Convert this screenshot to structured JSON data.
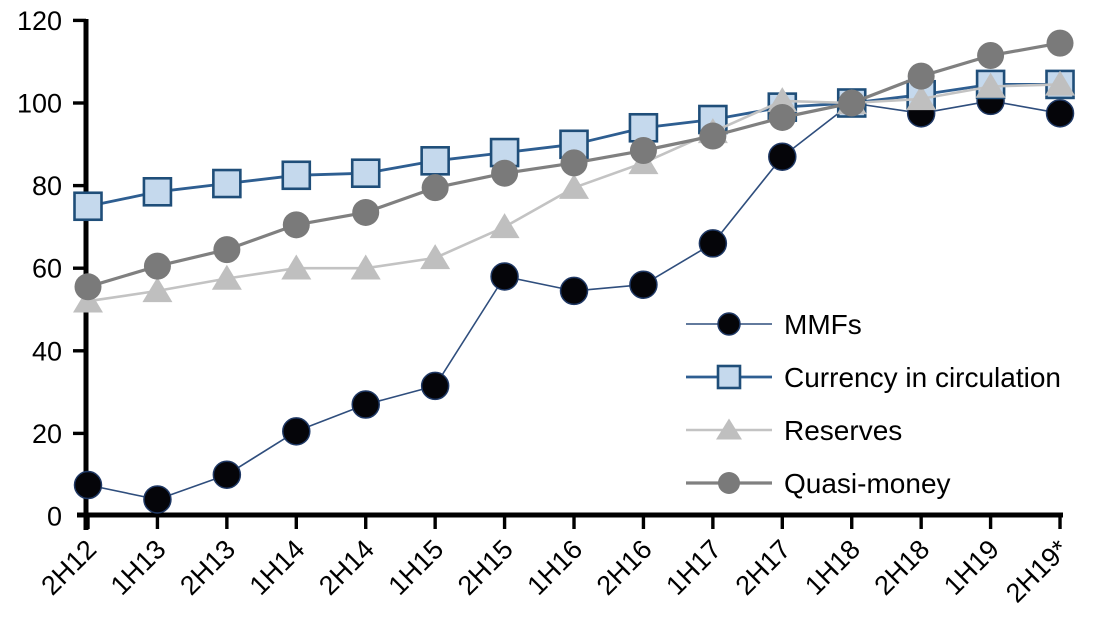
{
  "chart_data": {
    "type": "line",
    "title": "",
    "xlabel": "",
    "ylabel": "",
    "ylim": [
      0,
      120
    ],
    "grid": "off",
    "legend_position": "center-right-inside",
    "ytick_labels": [
      "0",
      "20",
      "40",
      "60",
      "80",
      "100",
      "120"
    ],
    "ytick_values": [
      0,
      20,
      40,
      60,
      80,
      100,
      120
    ],
    "categories": [
      "2H12",
      "1H13",
      "2H13",
      "1H14",
      "2H14",
      "1H15",
      "2H15",
      "1H16",
      "2H16",
      "1H17",
      "2H17",
      "1H18",
      "2H18",
      "1H19",
      "2H19*"
    ],
    "axis_color": "#000000",
    "series": [
      {
        "name": "MMFs",
        "marker": "circle",
        "line_color": "#2F4E7D",
        "line_width": 1.6,
        "marker_fill": "#050509",
        "marker_stroke": "#1F3864",
        "marker_stroke_width": 1.5,
        "values": [
          7.5,
          4,
          10,
          20.5,
          27,
          31.5,
          58,
          54.5,
          56,
          66,
          87,
          100,
          97.5,
          100.5,
          97.5
        ]
      },
      {
        "name": "Currency in circulation",
        "marker": "square",
        "line_color": "#2E5E91",
        "line_width": 2.8,
        "marker_fill": "#C5D9ED",
        "marker_stroke": "#1F4E79",
        "marker_stroke_width": 2.6,
        "values": [
          75,
          78.5,
          80.5,
          82.5,
          83,
          86,
          88,
          90,
          94,
          96,
          99,
          100,
          102,
          104.5,
          104.5
        ]
      },
      {
        "name": "Reserves",
        "marker": "triangle",
        "line_color": "#C3C3C3",
        "line_width": 2.6,
        "marker_fill": "#BFBFBF",
        "marker_stroke": "#BFBFBF",
        "marker_stroke_width": 0,
        "values": [
          52,
          54.5,
          57.5,
          60,
          60,
          62.5,
          70,
          79.5,
          85.5,
          93,
          100.5,
          100,
          101,
          104,
          104.5
        ]
      },
      {
        "name": "Quasi-money",
        "marker": "circle",
        "line_color": "#808080",
        "line_width": 3.2,
        "marker_fill": "#7A7A7A",
        "marker_stroke": "#7A7A7A",
        "marker_stroke_width": 0,
        "values": [
          55.5,
          60.5,
          64.5,
          70.5,
          73.5,
          79.5,
          83,
          85.5,
          88.5,
          92,
          96.5,
          100,
          106.5,
          111.5,
          114.5
        ]
      }
    ]
  }
}
